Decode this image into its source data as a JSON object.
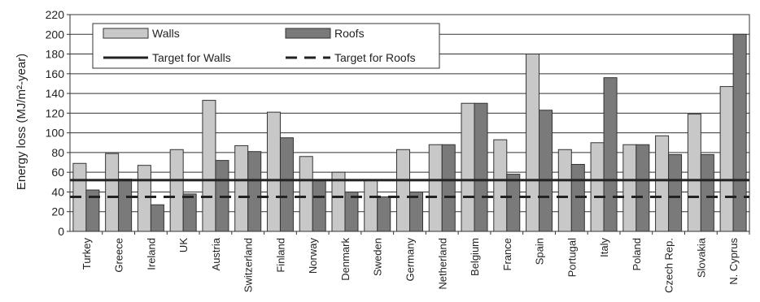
{
  "chart_data": {
    "type": "bar",
    "ylabel": "Energy loss (MJ/m²-year)",
    "ylim": [
      0,
      220
    ],
    "yticks": [
      0,
      20,
      40,
      60,
      80,
      100,
      120,
      140,
      160,
      180,
      200,
      220
    ],
    "grid": true,
    "legend_position": "top-left",
    "categories": [
      "Turkey",
      "Greece",
      "Ireland",
      "UK",
      "Austria",
      "Switzerland",
      "Finland",
      "Norway",
      "Denmark",
      "Sweden",
      "Germany",
      "Netherland",
      "Belgium",
      "France",
      "Spain",
      "Portugal",
      "Italy",
      "Poland",
      "Czech Rep.",
      "Slovakia",
      "N. Cyprus"
    ],
    "series": [
      {
        "name": "Walls",
        "color": "#c8c8c8",
        "values": [
          69,
          79,
          67,
          83,
          133,
          87,
          121,
          76,
          60,
          52,
          83,
          88,
          130,
          93,
          180,
          83,
          90,
          88,
          97,
          119,
          147
        ]
      },
      {
        "name": "Roofs",
        "color": "#7a7a7a",
        "values": [
          42,
          53,
          27,
          38,
          72,
          81,
          95,
          52,
          40,
          35,
          40,
          88,
          130,
          58,
          123,
          68,
          156,
          88,
          78,
          78,
          200
        ]
      }
    ],
    "targets": [
      {
        "name": "Target for Walls",
        "value": 52,
        "style": "solid"
      },
      {
        "name": "Target for Roofs",
        "value": 35,
        "style": "dashed"
      }
    ]
  }
}
